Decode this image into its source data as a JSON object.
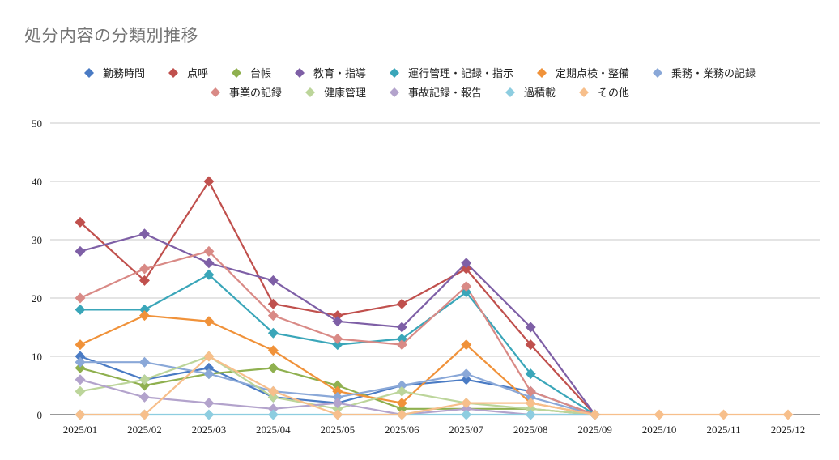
{
  "chart_data": {
    "type": "line",
    "title": "処分内容の分類別推移",
    "xlabel": "",
    "ylabel": "",
    "ylim": [
      0,
      50
    ],
    "yticks": [
      0,
      10,
      20,
      30,
      40,
      50
    ],
    "grid": true,
    "legend_position": "top",
    "categories": [
      "2025/01",
      "2025/02",
      "2025/03",
      "2025/04",
      "2025/05",
      "2025/06",
      "2025/07",
      "2025/08",
      "2025/09",
      "2025/10",
      "2025/11",
      "2025/12"
    ],
    "series": [
      {
        "name": "勤務時間",
        "color": "#4a7bc4",
        "values": [
          10,
          6,
          8,
          3,
          2,
          5,
          6,
          4,
          0,
          null,
          null,
          null
        ]
      },
      {
        "name": "点呼",
        "color": "#c0504d",
        "values": [
          33,
          23,
          40,
          19,
          17,
          19,
          25,
          12,
          0,
          null,
          null,
          null
        ]
      },
      {
        "name": "台帳",
        "color": "#8fb04f",
        "values": [
          8,
          5,
          7,
          8,
          5,
          1,
          1,
          1,
          0,
          null,
          null,
          null
        ]
      },
      {
        "name": "教育・指導",
        "color": "#7e5fa6",
        "values": [
          28,
          31,
          26,
          23,
          16,
          15,
          26,
          15,
          0,
          null,
          null,
          null
        ]
      },
      {
        "name": "運行管理・記録・指示",
        "color": "#3aa6b9",
        "values": [
          18,
          18,
          24,
          14,
          12,
          13,
          21,
          7,
          0,
          null,
          null,
          null
        ]
      },
      {
        "name": "定期点検・整備",
        "color": "#f0923a",
        "values": [
          12,
          17,
          16,
          11,
          4,
          2,
          12,
          2,
          0,
          null,
          null,
          null
        ]
      },
      {
        "name": "乗務・業務の記録",
        "color": "#8aa8d8",
        "values": [
          9,
          9,
          7,
          4,
          3,
          5,
          7,
          3,
          0,
          null,
          null,
          null
        ]
      },
      {
        "name": "事業の記録",
        "color": "#d98a86",
        "values": [
          20,
          25,
          28,
          17,
          13,
          12,
          22,
          4,
          0,
          null,
          null,
          null
        ]
      },
      {
        "name": "健康管理",
        "color": "#bcd59a",
        "values": [
          4,
          6,
          10,
          3,
          1,
          4,
          2,
          1,
          0,
          null,
          null,
          null
        ]
      },
      {
        "name": "事故記録・報告",
        "color": "#b3a3cc",
        "values": [
          6,
          3,
          2,
          1,
          2,
          0,
          1,
          0,
          0,
          null,
          null,
          null
        ]
      },
      {
        "name": "過積載",
        "color": "#8dcde0",
        "values": [
          0,
          0,
          0,
          0,
          0,
          0,
          0,
          0,
          0,
          null,
          null,
          null
        ]
      },
      {
        "name": "その他",
        "color": "#f7bf8b",
        "values": [
          0,
          0,
          10,
          4,
          0,
          0,
          2,
          2,
          0,
          0,
          0,
          0
        ]
      }
    ]
  }
}
